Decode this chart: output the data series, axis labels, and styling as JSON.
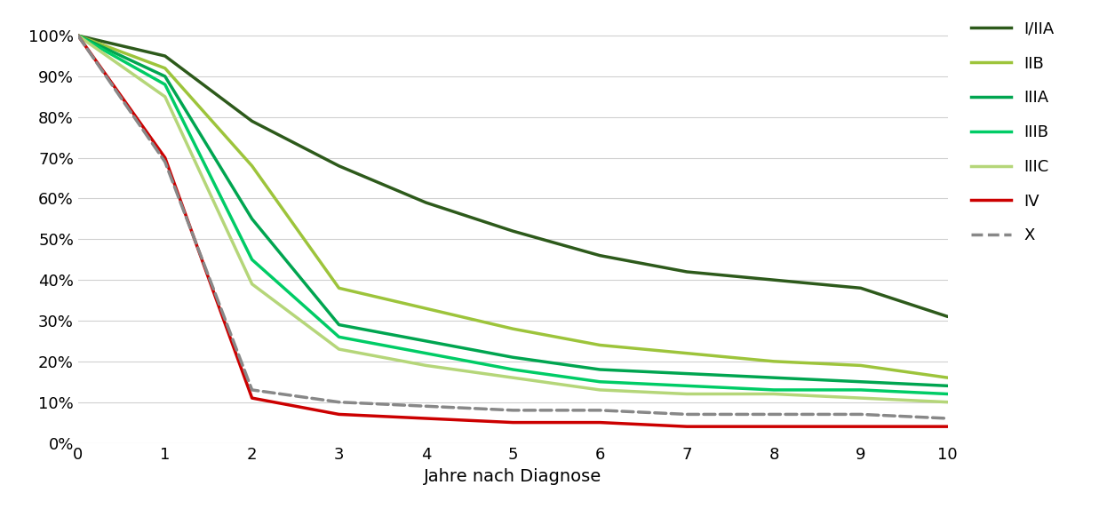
{
  "series": {
    "I/IIA": {
      "color": "#2d5a1b",
      "linestyle": "solid",
      "linewidth": 2.5,
      "values": [
        1.0,
        0.95,
        0.79,
        0.68,
        0.59,
        0.52,
        0.46,
        0.42,
        0.4,
        0.38,
        0.31
      ]
    },
    "IIB": {
      "color": "#9dc43b",
      "linestyle": "solid",
      "linewidth": 2.5,
      "values": [
        1.0,
        0.92,
        0.68,
        0.38,
        0.33,
        0.28,
        0.24,
        0.22,
        0.2,
        0.19,
        0.16
      ]
    },
    "IIIA": {
      "color": "#00a550",
      "linestyle": "solid",
      "linewidth": 2.5,
      "values": [
        1.0,
        0.9,
        0.55,
        0.29,
        0.25,
        0.21,
        0.18,
        0.17,
        0.16,
        0.15,
        0.14
      ]
    },
    "IIIB": {
      "color": "#00cc66",
      "linestyle": "solid",
      "linewidth": 2.5,
      "values": [
        1.0,
        0.88,
        0.45,
        0.26,
        0.22,
        0.18,
        0.15,
        0.14,
        0.13,
        0.13,
        0.12
      ]
    },
    "IIIC": {
      "color": "#b5d679",
      "linestyle": "solid",
      "linewidth": 2.5,
      "values": [
        1.0,
        0.85,
        0.39,
        0.23,
        0.19,
        0.16,
        0.13,
        0.12,
        0.12,
        0.11,
        0.1
      ]
    },
    "IV": {
      "color": "#cc0000",
      "linestyle": "solid",
      "linewidth": 2.5,
      "values": [
        1.0,
        0.7,
        0.11,
        0.07,
        0.06,
        0.05,
        0.05,
        0.04,
        0.04,
        0.04,
        0.04
      ]
    },
    "X": {
      "color": "#888888",
      "linestyle": "dashed",
      "linewidth": 2.5,
      "values": [
        1.0,
        0.69,
        0.13,
        0.1,
        0.09,
        0.08,
        0.08,
        0.07,
        0.07,
        0.07,
        0.06
      ]
    }
  },
  "x": [
    0,
    1,
    2,
    3,
    4,
    5,
    6,
    7,
    8,
    9,
    10
  ],
  "xlabel": "Jahre nach Diagnose",
  "xlim": [
    0,
    10
  ],
  "ylim": [
    0.0,
    1.05
  ],
  "yticks": [
    0.0,
    0.1,
    0.2,
    0.3,
    0.4,
    0.5,
    0.6,
    0.7,
    0.8,
    0.9,
    1.0
  ],
  "xticks": [
    0,
    1,
    2,
    3,
    4,
    5,
    6,
    7,
    8,
    9,
    10
  ],
  "grid_color": "#d0d0d0",
  "background_color": "#ffffff",
  "xlabel_fontsize": 14,
  "tick_fontsize": 13,
  "legend_fontsize": 13,
  "legend_order": [
    "I/IIA",
    "IIB",
    "IIIA",
    "IIIB",
    "IIIC",
    "IV",
    "X"
  ]
}
